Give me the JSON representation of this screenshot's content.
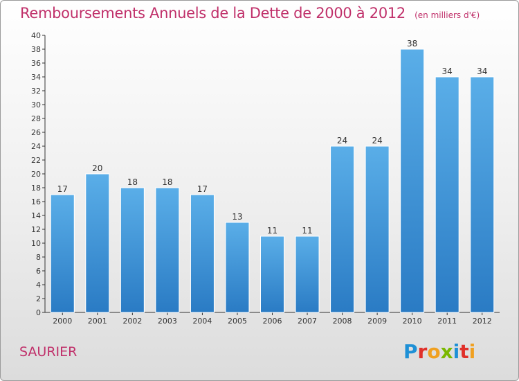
{
  "chart_data": {
    "type": "bar",
    "title": "Remboursements Annuels de la Dette de 2000 à 2012",
    "subtitle": "(en milliers d'€)",
    "categories": [
      "2000",
      "2001",
      "2002",
      "2003",
      "2004",
      "2005",
      "2006",
      "2007",
      "2008",
      "2009",
      "2010",
      "2011",
      "2012"
    ],
    "values": [
      17,
      20,
      18,
      18,
      17,
      13,
      11,
      11,
      24,
      24,
      38,
      34,
      34
    ],
    "ylim": [
      0,
      40
    ],
    "yticks": [
      0,
      2,
      4,
      6,
      8,
      10,
      12,
      14,
      16,
      18,
      20,
      22,
      24,
      26,
      28,
      30,
      32,
      34,
      36,
      38,
      40
    ],
    "grid": false,
    "bar_color_top": "#5aaee8",
    "bar_color_bottom": "#2a7bc4"
  },
  "footer": {
    "commune": "SAURIER",
    "logo": "Proxiti"
  },
  "colors": {
    "title": "#c0306a",
    "logo_letters": [
      "#1e90d6",
      "#e0302a",
      "#f0a020",
      "#7ab800",
      "#1e90d6",
      "#e0302a",
      "#f0a020"
    ]
  }
}
